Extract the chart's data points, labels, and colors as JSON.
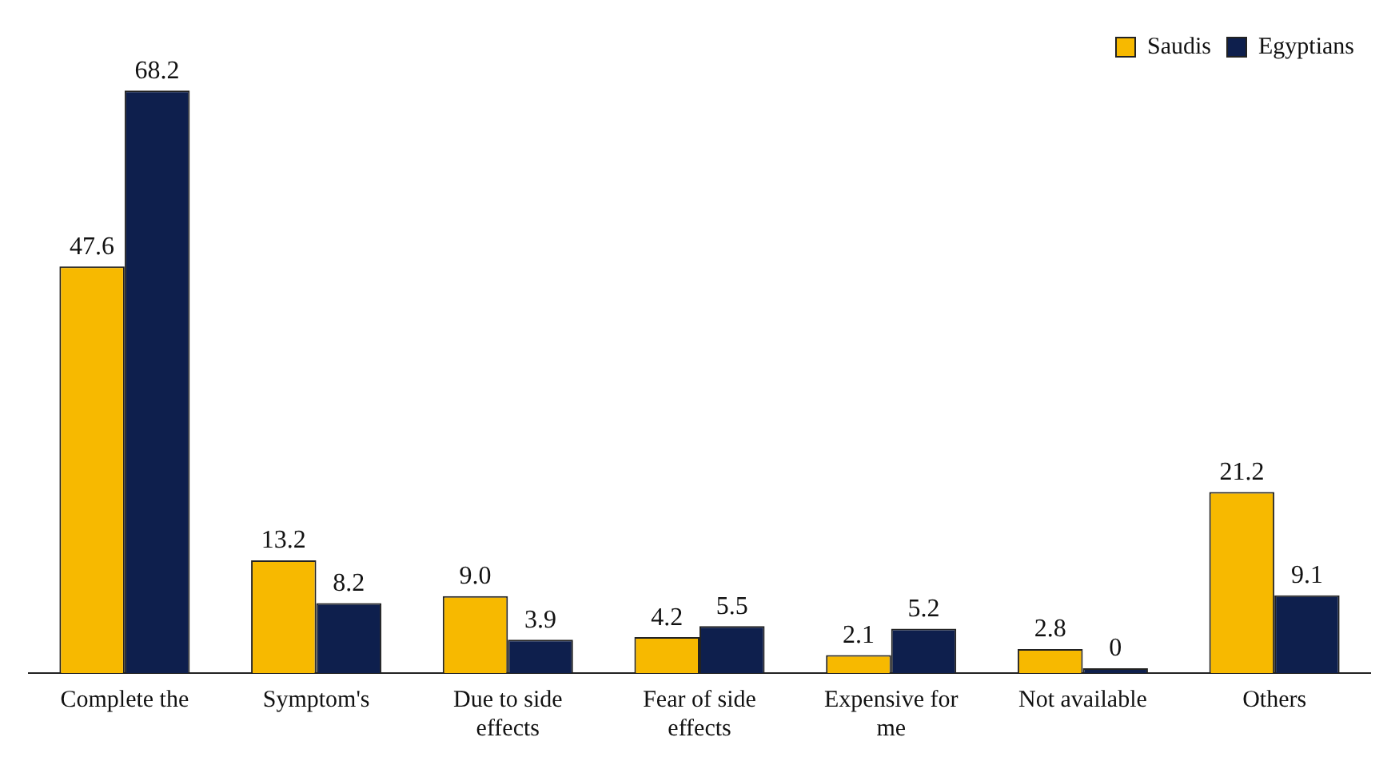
{
  "chart_data": {
    "type": "bar",
    "categories": [
      "Complete the",
      "Symptom's",
      "Due to side effects",
      "Fear of side effects",
      "Expensive for me",
      "Not available",
      "Others"
    ],
    "series": [
      {
        "name": "Saudis",
        "color": "#f7b900",
        "values": [
          47.6,
          13.2,
          9.0,
          4.2,
          2.1,
          2.8,
          21.2
        ],
        "value_labels": [
          "47.6",
          "13.2",
          "9.0",
          "4.2",
          "2.1",
          "2.8",
          "21.2"
        ]
      },
      {
        "name": "Egyptians",
        "color": "#0e1f4d",
        "values": [
          68.2,
          8.2,
          3.9,
          5.5,
          5.2,
          0,
          9.1
        ],
        "value_labels": [
          "68.2",
          "8.2",
          "3.9",
          "5.5",
          "5.2",
          "0",
          "9.1"
        ]
      }
    ],
    "legend": "top right",
    "grid": false
  }
}
